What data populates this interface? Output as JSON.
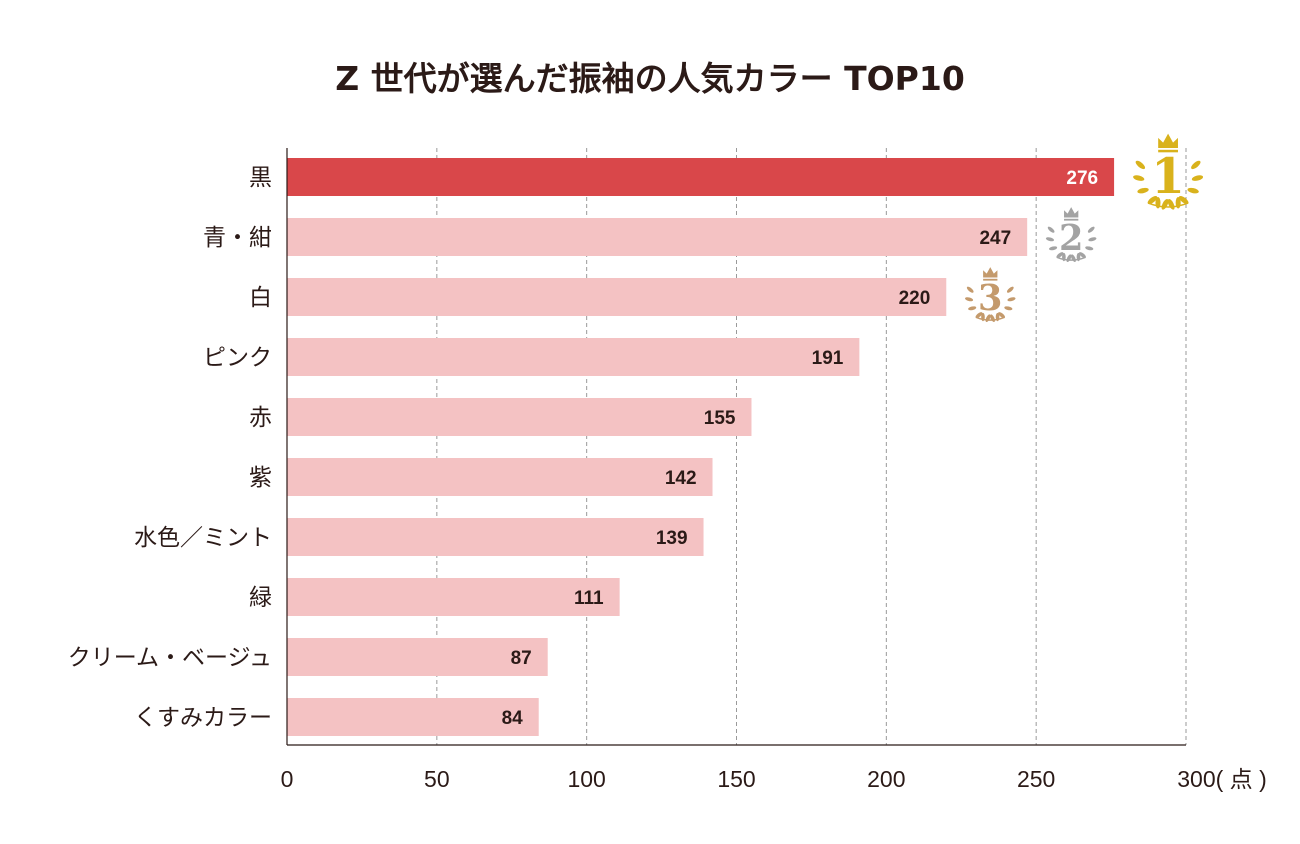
{
  "chart_data": {
    "type": "bar",
    "orientation": "horizontal",
    "title": "Z 世代が選んだ振袖の人気カラー TOP10",
    "xlabel": "",
    "unit_label": "( 点 )",
    "ylabel": "",
    "xlim": [
      0,
      300
    ],
    "xticks": [
      0,
      50,
      100,
      150,
      200,
      250,
      300
    ],
    "grid": "vertical dashed",
    "categories": [
      "黒",
      "青・紺",
      "白",
      "ピンク",
      "赤",
      "紫",
      "水色／ミント",
      "緑",
      "クリーム・ベージュ",
      "くすみカラー"
    ],
    "values": [
      276,
      247,
      220,
      191,
      155,
      142,
      139,
      111,
      87,
      84
    ],
    "highlight_index": 0,
    "colors": {
      "highlight": "#d9474a",
      "bar": "#f4c2c3",
      "text": "#2b1a17",
      "grid": "#9a9a9a"
    },
    "medals": [
      {
        "rank": "1",
        "color": "#d9b21c",
        "icon": "laurel-crown-icon"
      },
      {
        "rank": "2",
        "color": "#a3a3a3",
        "icon": "laurel-crown-icon"
      },
      {
        "rank": "3",
        "color": "#c49a6c",
        "icon": "laurel-crown-icon"
      }
    ]
  }
}
